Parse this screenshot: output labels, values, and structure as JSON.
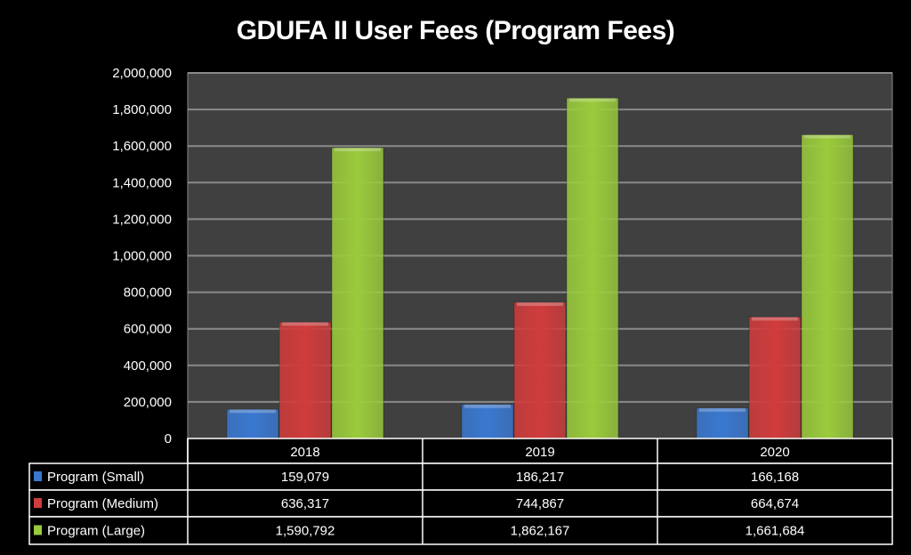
{
  "chart_data": {
    "type": "bar",
    "title": "GDUFA II User Fees (Program Fees)",
    "categories": [
      "2018",
      "2019",
      "2020"
    ],
    "series": [
      {
        "name": "Program (Small)",
        "color": "#3a78d0",
        "values": [
          159079,
          186217,
          166168
        ],
        "labels": [
          "159,079",
          "186,217",
          "166,168"
        ]
      },
      {
        "name": "Program (Medium)",
        "color": "#d03c3c",
        "values": [
          636317,
          744867,
          664674
        ],
        "labels": [
          "636,317",
          "744,867",
          "664,674"
        ]
      },
      {
        "name": "Program (Large)",
        "color": "#9acb3c",
        "values": [
          1590792,
          1862167,
          1661684
        ],
        "labels": [
          "1,590,792",
          "1,862,167",
          "1,661,684"
        ]
      }
    ],
    "ylim": [
      0,
      2000000
    ],
    "yticks": [
      "0",
      "200,000",
      "400,000",
      "600,000",
      "800,000",
      "1,000,000",
      "1,200,000",
      "1,400,000",
      "1,600,000",
      "1,800,000",
      "2,000,000"
    ],
    "grid": true,
    "legend": "data-table",
    "plot_background": "#404040"
  }
}
